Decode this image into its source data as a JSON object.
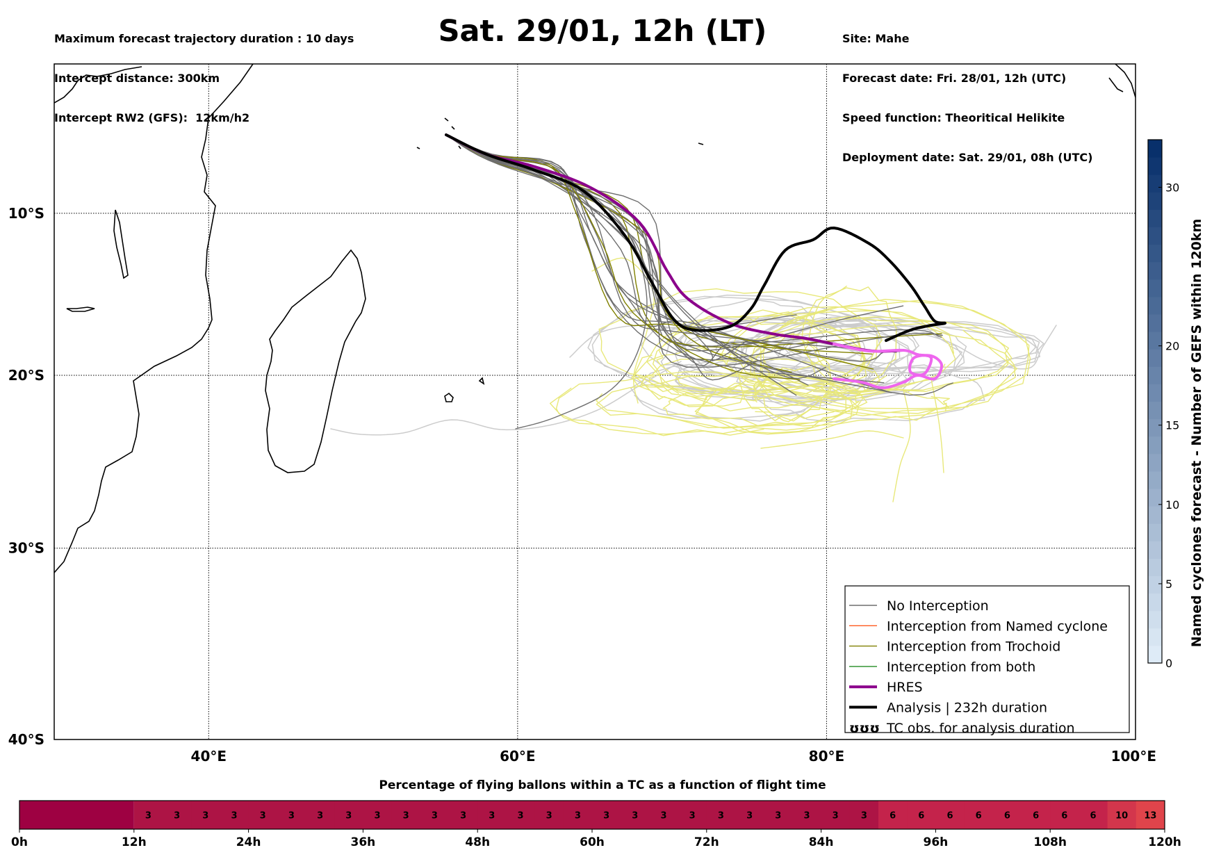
{
  "header": {
    "left_lines": [
      "Maximum forecast trajectory duration : 10 days",
      "Intercept distance: 300km",
      "Intercept RW2 (GFS):  12km/h2"
    ],
    "title": "Sat. 29/01, 12h (LT)",
    "right_lines": [
      "Site: Mahe",
      "Forecast date: Fri. 28/01, 12h (UTC)",
      "Speed function: Theoritical Helikite",
      "Deployment date: Sat. 29/01, 08h (UTC)"
    ]
  },
  "map": {
    "lon_range": [
      30,
      100
    ],
    "lat_range": [
      -40,
      -0.5
    ],
    "lat_labels": [
      {
        "lat": -10,
        "label": "10°S"
      },
      {
        "lat": -20,
        "label": "20°S"
      },
      {
        "lat": -30,
        "label": "30°S"
      },
      {
        "lat": -40,
        "label": "40°S"
      }
    ],
    "lon_labels": [
      {
        "lon": 40,
        "label": "40°E"
      },
      {
        "lon": 60,
        "label": "60°E"
      },
      {
        "lon": 80,
        "label": "80°E"
      },
      {
        "lon": 100,
        "label": "100°E"
      }
    ],
    "colors": {
      "no_interception": "#6e6e6e",
      "named_cyclone": "#ff5a1e",
      "trochoid": "#808000",
      "both": "#228b22",
      "hres": "#8b008b",
      "analysis": "#000000",
      "tc_obs": "#ee66ee",
      "yellow_members": "#e8e87a",
      "light_members": "#cccccc"
    }
  },
  "legend": {
    "items": [
      {
        "label": "No Interception",
        "symbol": "thin",
        "color": "#6e6e6e"
      },
      {
        "label": "Interception from Named cyclone",
        "symbol": "thin",
        "color": "#ff5a1e"
      },
      {
        "label": "Interception from Trochoid",
        "symbol": "thin",
        "color": "#808000"
      },
      {
        "label": "Interception from both",
        "symbol": "thin",
        "color": "#228b22"
      },
      {
        "label": "HRES",
        "symbol": "thick",
        "color": "#8b008b"
      },
      {
        "label": "Analysis | 232h duration",
        "symbol": "thick",
        "color": "#000000"
      },
      {
        "label": "TC obs. for analysis duration",
        "symbol": "cyclone",
        "color": "#000000"
      }
    ],
    "cyclone_glyph": "ʊʊʊ"
  },
  "colorbar_right": {
    "label": "Named cyclones forecast - Number of GEFS within 120km",
    "min": 0,
    "max": 33,
    "ticks": [
      0,
      5,
      10,
      15,
      20,
      30
    ],
    "color_low": "#deebf7",
    "color_high": "#08306b"
  },
  "flight_time_bar": {
    "title": "Percentage of flying ballons within a TC as a function of flight time",
    "hour_labels": [
      "0h",
      "12h",
      "24h",
      "36h",
      "48h",
      "60h",
      "72h",
      "84h",
      "96h",
      "108h",
      "120h"
    ],
    "first_span_hours": 12,
    "bins": [
      "3",
      "3",
      "3",
      "3",
      "3",
      "3",
      "3",
      "3",
      "3",
      "3",
      "3",
      "3",
      "3",
      "3",
      "3",
      "3",
      "3",
      "3",
      "3",
      "3",
      "3",
      "3",
      "3",
      "3",
      "3",
      "3",
      "6",
      "6",
      "6",
      "6",
      "6",
      "6",
      "6",
      "6",
      "10",
      "13"
    ],
    "color_zero": "#9e0142",
    "color_3": "#ad1445",
    "color_6": "#c4234b",
    "color_10": "#d3364c",
    "color_13": "#e0444b"
  }
}
